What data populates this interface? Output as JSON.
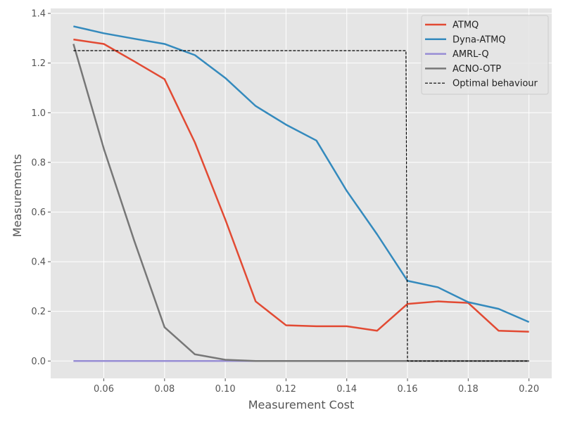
{
  "chart_data": {
    "type": "line",
    "xlabel": "Measurement Cost",
    "ylabel": "Measurements",
    "xlim": [
      0.0425,
      0.2075
    ],
    "ylim": [
      -0.07,
      1.42
    ],
    "xticks": [
      0.06,
      0.08,
      0.1,
      0.12,
      0.14,
      0.16,
      0.18,
      0.2
    ],
    "xtick_labels": [
      "0.06",
      "0.08",
      "0.10",
      "0.12",
      "0.14",
      "0.16",
      "0.18",
      "0.20"
    ],
    "yticks": [
      0.0,
      0.2,
      0.4,
      0.6,
      0.8,
      1.0,
      1.2,
      1.4
    ],
    "ytick_labels": [
      "0.0",
      "0.2",
      "0.4",
      "0.6",
      "0.8",
      "1.0",
      "1.2",
      "1.4"
    ],
    "grid": true,
    "legend_position": "top-right",
    "x": [
      0.05,
      0.06,
      0.07,
      0.08,
      0.09,
      0.1,
      0.11,
      0.12,
      0.13,
      0.14,
      0.15,
      0.16,
      0.17,
      0.18,
      0.19,
      0.2
    ],
    "series": [
      {
        "name": "ATMQ",
        "color": "#E24A33",
        "style": "solid",
        "values": [
          1.295,
          1.277,
          1.207,
          1.135,
          0.88,
          0.57,
          0.24,
          0.144,
          0.14,
          0.14,
          0.122,
          0.23,
          0.24,
          0.234,
          0.122,
          0.118
        ]
      },
      {
        "name": "Dyna-ATMQ",
        "color": "#348ABD",
        "style": "solid",
        "values": [
          1.348,
          1.32,
          1.298,
          1.277,
          1.232,
          1.14,
          1.027,
          0.952,
          0.888,
          0.685,
          0.51,
          0.323,
          0.297,
          0.237,
          0.21,
          0.157
        ]
      },
      {
        "name": "AMRL-Q",
        "color": "#988ED5",
        "style": "solid",
        "values": [
          0,
          0,
          0,
          0,
          0,
          0,
          0,
          0,
          0,
          0,
          0,
          0,
          0,
          0,
          0,
          0
        ]
      },
      {
        "name": "ACNO-OTP",
        "color": "#777777",
        "style": "solid",
        "values": [
          1.277,
          0.855,
          0.485,
          0.136,
          0.027,
          0.005,
          0,
          0,
          0,
          0,
          0,
          0,
          0,
          0,
          0,
          0
        ]
      },
      {
        "name": "Optimal behaviour",
        "color": "#000000",
        "style": "dashed",
        "points": [
          [
            0.05,
            1.25
          ],
          [
            0.1595,
            1.25
          ],
          [
            0.16,
            0.0
          ],
          [
            0.2,
            0.0
          ]
        ]
      }
    ]
  }
}
